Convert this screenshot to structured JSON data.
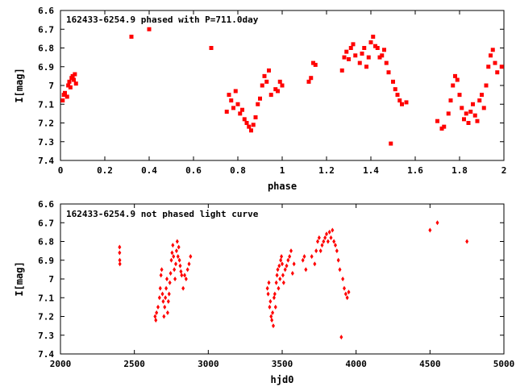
{
  "chart_data": [
    {
      "type": "scatter",
      "title": "162433-6254.9 phased with P=711.0day",
      "xlabel": "phase",
      "ylabel": "I[mag]",
      "xlim": [
        0,
        2
      ],
      "ylim": [
        6.6,
        7.4
      ],
      "y_inverted": true,
      "xticks": [
        "0",
        "0.2",
        "0.4",
        "0.6",
        "0.8",
        "1",
        "1.2",
        "1.4",
        "1.6",
        "1.8",
        "2"
      ],
      "yticks": [
        "6.6",
        "6.7",
        "6.8",
        "6.9",
        "7",
        "7.1",
        "7.2",
        "7.3",
        "7.4"
      ],
      "marker": "filled-square",
      "color": "#ff0000",
      "series": [
        {
          "x": [
            0.01,
            0.015,
            0.02,
            0.03,
            0.035,
            0.04,
            0.045,
            0.05,
            0.055,
            0.06,
            0.065,
            0.07,
            0.32,
            0.4,
            0.68,
            0.75,
            0.76,
            0.77,
            0.78,
            0.79,
            0.8,
            0.81,
            0.82,
            0.83,
            0.84,
            0.85,
            0.86,
            0.87,
            0.88,
            0.89,
            0.9,
            0.91,
            0.92,
            0.93,
            0.94,
            0.95,
            0.97,
            0.98,
            0.99,
            1.0,
            1.12,
            1.13,
            1.14,
            1.15,
            1.27,
            1.28,
            1.29,
            1.3,
            1.31,
            1.32,
            1.33,
            1.35,
            1.36,
            1.37,
            1.38,
            1.39,
            1.4,
            1.41,
            1.42,
            1.43,
            1.44,
            1.45,
            1.46,
            1.47,
            1.48,
            1.49,
            1.5,
            1.51,
            1.52,
            1.53,
            1.54,
            1.56,
            1.7,
            1.72,
            1.73,
            1.75,
            1.76,
            1.77,
            1.78,
            1.79,
            1.8,
            1.81,
            1.82,
            1.83,
            1.84,
            1.85,
            1.86,
            1.87,
            1.88,
            1.89,
            1.9,
            1.91,
            1.92,
            1.93,
            1.94,
            1.95,
            1.96,
            1.97,
            1.99
          ],
          "y": [
            7.08,
            7.05,
            7.04,
            7.06,
            7.0,
            6.98,
            7.01,
            6.96,
            6.95,
            6.97,
            6.94,
            6.99,
            6.74,
            6.7,
            6.8,
            7.14,
            7.05,
            7.08,
            7.12,
            7.03,
            7.1,
            7.15,
            7.13,
            7.18,
            7.2,
            7.22,
            7.24,
            7.21,
            7.17,
            7.1,
            7.07,
            7.0,
            6.95,
            6.98,
            6.92,
            7.05,
            7.02,
            7.03,
            6.98,
            7.0,
            6.98,
            6.96,
            6.88,
            6.89,
            6.92,
            6.85,
            6.82,
            6.86,
            6.8,
            6.78,
            6.84,
            6.88,
            6.83,
            6.8,
            6.9,
            6.85,
            6.77,
            6.74,
            6.79,
            6.8,
            6.85,
            6.84,
            6.81,
            6.88,
            6.93,
            7.31,
            6.98,
            7.02,
            7.05,
            7.08,
            7.1,
            7.09,
            7.19,
            7.23,
            7.22,
            7.15,
            7.08,
            7.0,
            6.95,
            6.97,
            7.05,
            7.12,
            7.18,
            7.15,
            7.2,
            7.14,
            7.1,
            7.16,
            7.19,
            7.08,
            7.05,
            7.12,
            7.0,
            6.9,
            6.84,
            6.81,
            6.88,
            6.93,
            6.9
          ]
        }
      ]
    },
    {
      "type": "scatter",
      "title": "162433-6254.9 not phased light curve",
      "xlabel": "hjd0",
      "ylabel": "I[mag]",
      "xlim": [
        2000,
        5000
      ],
      "ylim": [
        6.6,
        7.4
      ],
      "y_inverted": true,
      "xticks": [
        "2000",
        "2500",
        "3000",
        "3500",
        "4000",
        "4500",
        "5000"
      ],
      "yticks": [
        "6.6",
        "6.7",
        "6.8",
        "6.9",
        "7",
        "7.1",
        "7.2",
        "7.3",
        "7.4"
      ],
      "marker": "diamond",
      "color": "#ff0000",
      "series": [
        {
          "x": [
            2400,
            2400,
            2401,
            2402,
            2640,
            2645,
            2650,
            2660,
            2670,
            2675,
            2680,
            2685,
            2690,
            2695,
            2700,
            2705,
            2710,
            2715,
            2720,
            2725,
            2730,
            2735,
            2740,
            2745,
            2750,
            2755,
            2760,
            2765,
            2770,
            2775,
            2780,
            2785,
            2790,
            2795,
            2800,
            2805,
            2810,
            2815,
            2820,
            2830,
            2840,
            2850,
            2860,
            2870,
            2880,
            3400,
            3405,
            3410,
            3415,
            3420,
            3425,
            3430,
            3435,
            3440,
            3445,
            3450,
            3455,
            3460,
            3465,
            3470,
            3475,
            3480,
            3485,
            3490,
            3495,
            3500,
            3505,
            3510,
            3520,
            3530,
            3540,
            3550,
            3560,
            3570,
            3580,
            3640,
            3650,
            3660,
            3700,
            3720,
            3730,
            3740,
            3750,
            3760,
            3770,
            3780,
            3790,
            3800,
            3810,
            3820,
            3830,
            3840,
            3850,
            3860,
            3870,
            3880,
            3890,
            3900,
            3910,
            3920,
            3930,
            3940,
            3950,
            4500,
            4550,
            4750
          ],
          "y": [
            6.83,
            6.86,
            6.9,
            6.92,
            7.2,
            7.22,
            7.18,
            7.15,
            7.1,
            7.05,
            6.98,
            6.95,
            7.08,
            7.12,
            7.2,
            7.15,
            7.1,
            7.05,
            7.0,
            7.18,
            7.12,
            7.08,
            7.02,
            6.97,
            6.9,
            6.86,
            6.82,
            6.88,
            6.95,
            7.0,
            6.92,
            6.85,
            6.8,
            6.88,
            6.83,
            6.9,
            6.93,
            6.96,
            6.98,
            7.05,
            6.98,
            7.0,
            6.95,
            6.92,
            6.88,
            7.05,
            7.08,
            7.02,
            7.15,
            7.12,
            7.2,
            7.22,
            7.18,
            7.25,
            7.1,
            7.08,
            7.15,
            7.02,
            6.98,
            6.95,
            7.05,
            6.93,
            7.0,
            6.9,
            6.88,
            6.92,
            6.98,
            7.02,
            6.95,
            6.93,
            6.9,
            6.88,
            6.85,
            6.97,
            6.92,
            6.9,
            6.88,
            6.95,
            6.88,
            6.92,
            6.85,
            6.8,
            6.78,
            6.85,
            6.82,
            6.8,
            6.78,
            6.76,
            6.8,
            6.75,
            6.78,
            6.74,
            6.8,
            6.82,
            6.85,
            6.9,
            6.95,
            7.31,
            7.0,
            7.05,
            7.08,
            7.1,
            7.07,
            6.74,
            6.7,
            6.8
          ]
        }
      ]
    }
  ]
}
